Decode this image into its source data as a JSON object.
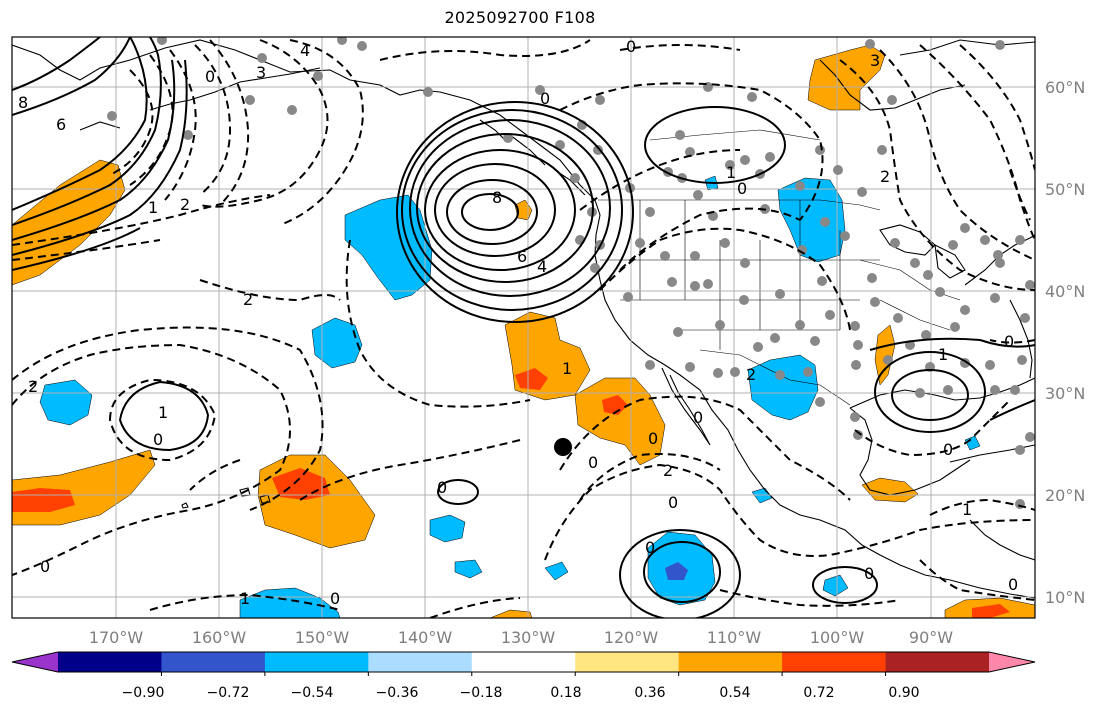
{
  "title": "2025092700 F108",
  "lat_labels": [
    "60°N",
    "50°N",
    "40°N",
    "30°N",
    "20°N",
    "10°N"
  ],
  "lon_labels": [
    "170°W",
    "160°W",
    "150°W",
    "140°W",
    "130°W",
    "120°W",
    "110°W",
    "100°W",
    "90°W"
  ],
  "colorbar": {
    "colors": [
      "#9933cc",
      "#000088",
      "#3355cc",
      "#00bbff",
      "#aaddff",
      "#ffffff",
      "#ffe680",
      "#ffa500",
      "#ff4000",
      "#aa2222",
      "#ff88aa"
    ],
    "tick_labels": [
      "−0.90",
      "−0.72",
      "−0.54",
      "−0.36",
      "−0.18",
      "0.18",
      "0.36",
      "0.54",
      "0.72",
      "0.90"
    ]
  },
  "contour_labels": {
    "neg_8_ak": "8",
    "neg_6_nw": "6",
    "neg_4_bering": "4",
    "neg_3_bering": "3",
    "neg_0_bering": "0",
    "neg_2_aleut": "2",
    "neg_1_aleut": "1",
    "low_8": "8",
    "low_6": "6",
    "low_4": "4",
    "low_0_n": "0",
    "low_0_canada": "0",
    "ridge_2": "2",
    "zero_30n": "0",
    "minus1_30n": "1",
    "zero_west": "0",
    "zero_mid": "0",
    "zero_ak": "0",
    "zero_bottom": "0",
    "one_bottom": "1",
    "one_sw": "1",
    "two_mid": "2",
    "two_mex": "2",
    "two_mex2": "2",
    "one_canada": "1",
    "zero_canada": "0",
    "two_east": "2",
    "zero_gulf": "0",
    "one_gulf": "1",
    "zero_east": "0",
    "zero_car": "0",
    "zero_pac": "0",
    "zero_se": "0",
    "zero_mex": "0",
    "zero_mex2": "0",
    "one_car": "1",
    "zero_pac_e": "0",
    "three_ne": "3"
  }
}
